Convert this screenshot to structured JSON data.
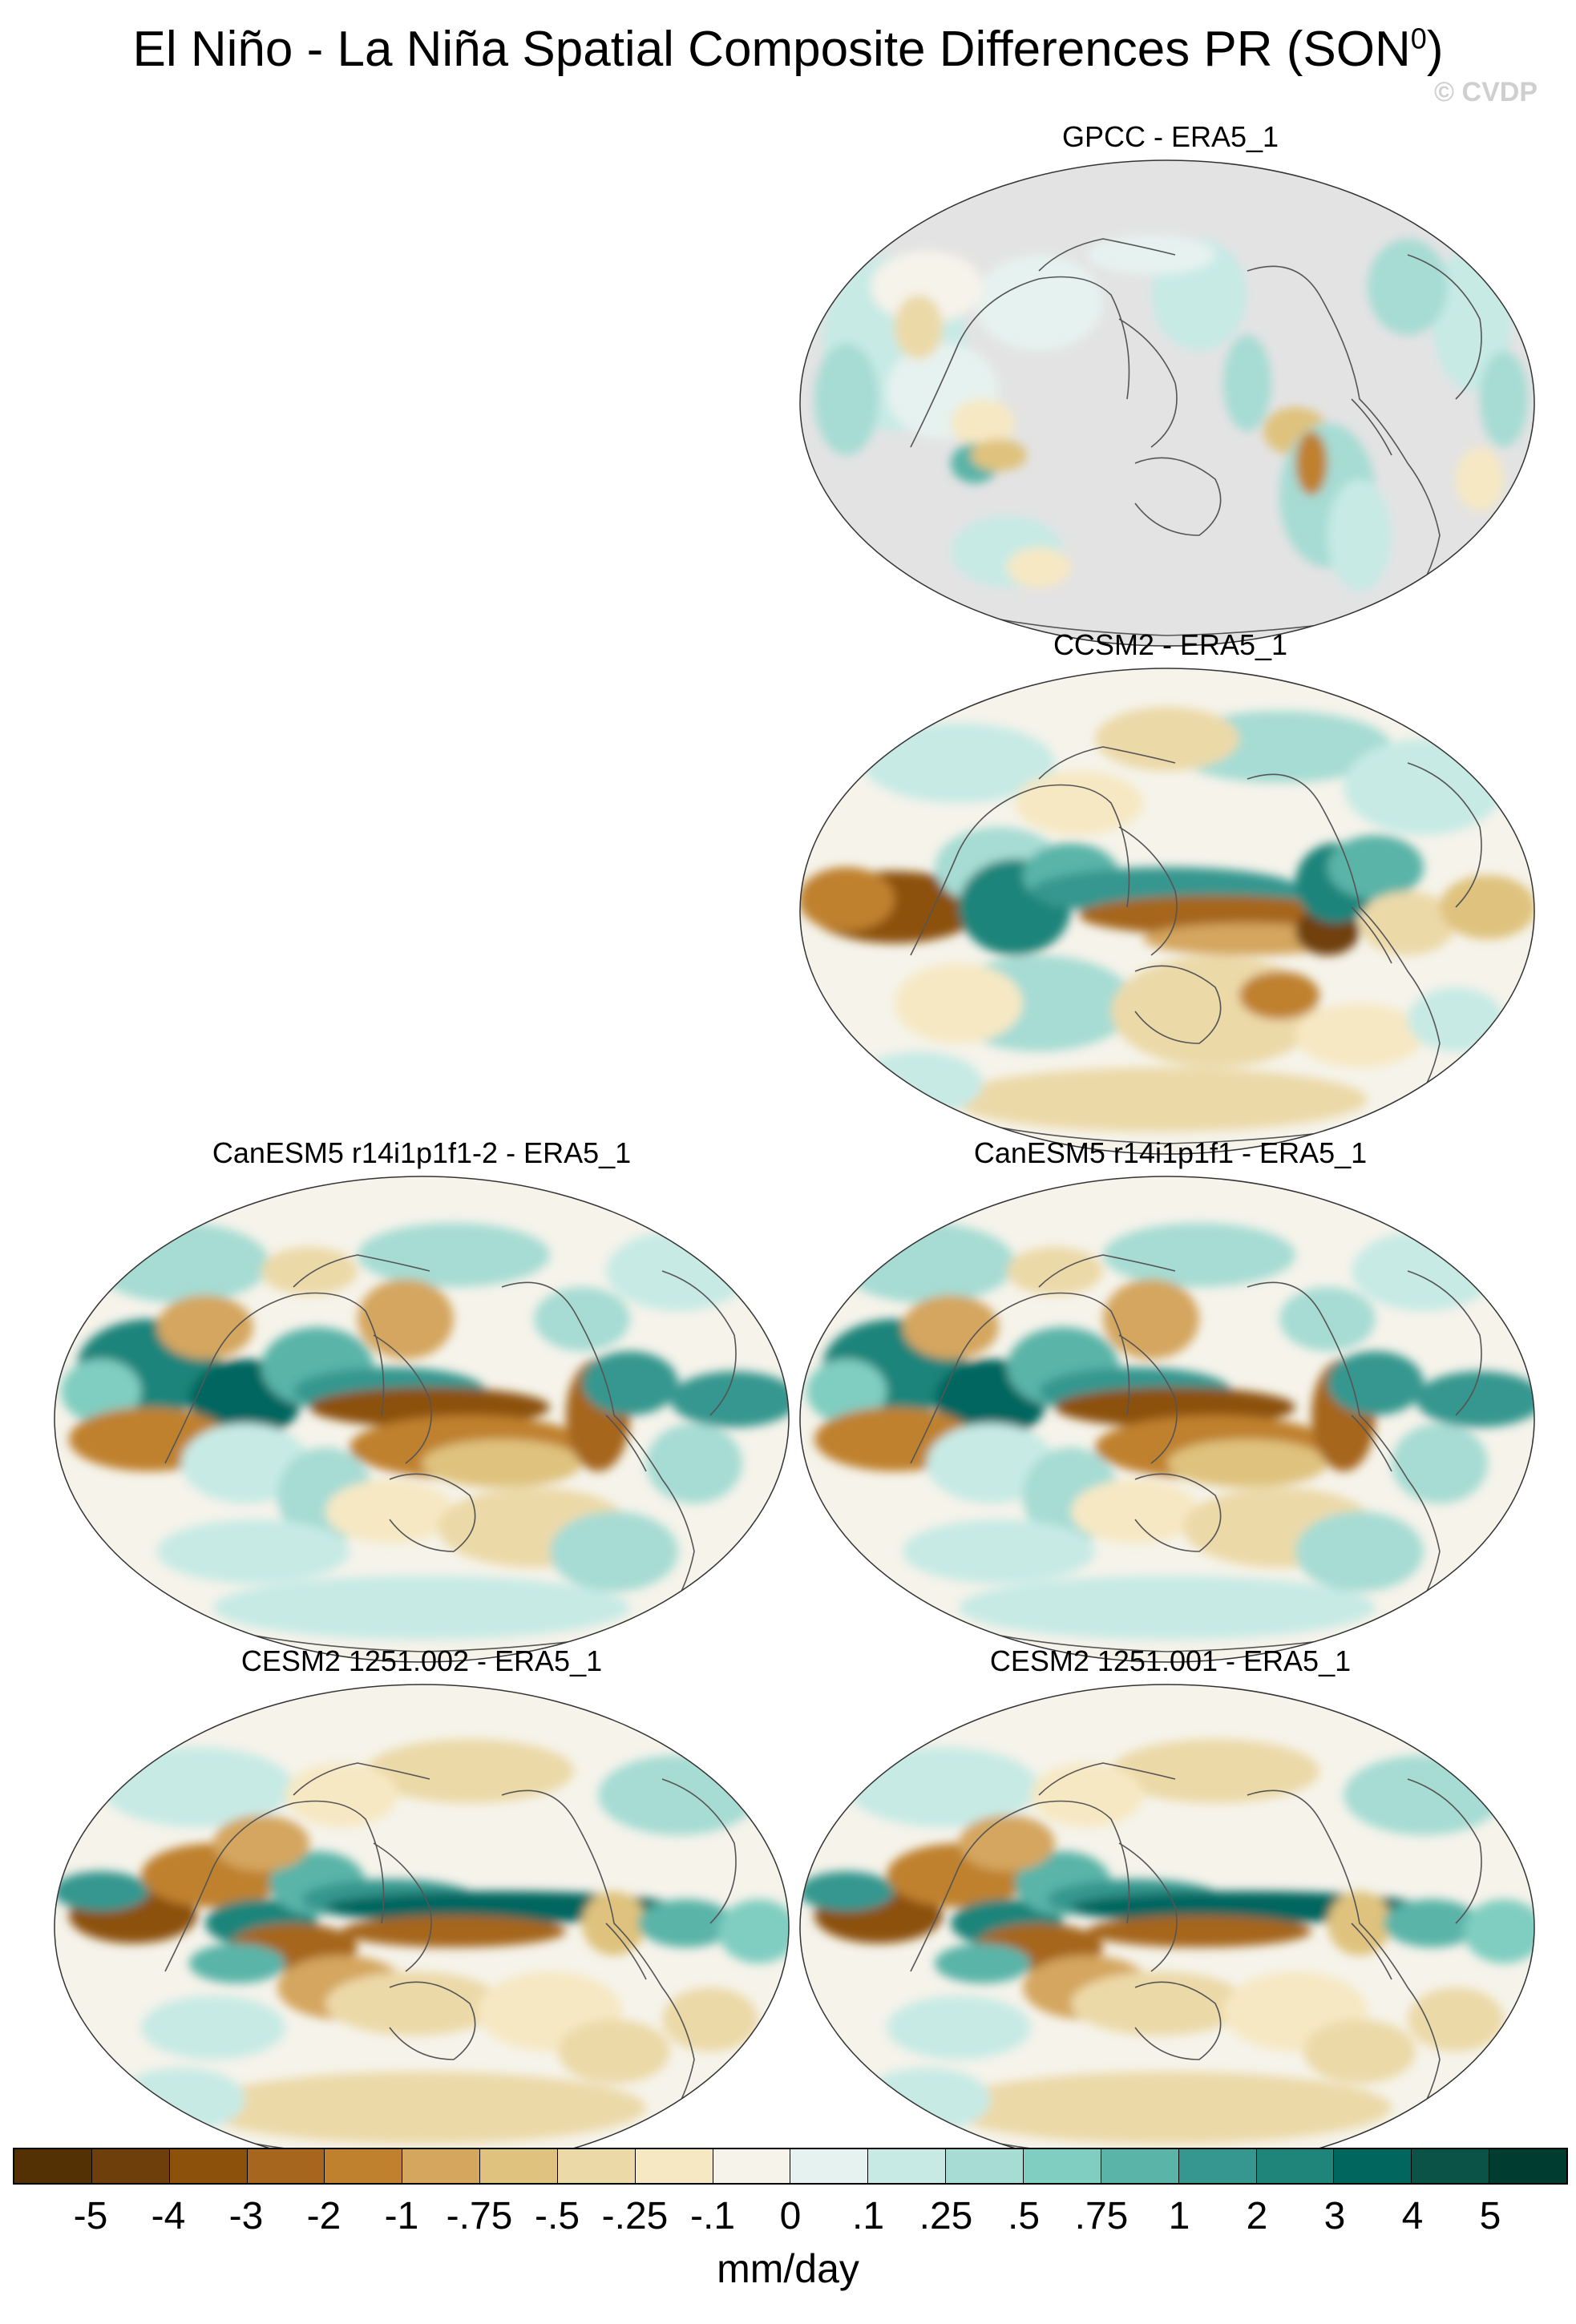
{
  "title": {
    "main": "El Niño - La Niña Spatial Composite Differences PR (SON",
    "sup": "0",
    "close": ")"
  },
  "watermark": "© CVDP",
  "panels": [
    {
      "id": "gpcc",
      "label": "GPCC - ERA5_1",
      "kind": "land"
    },
    {
      "id": "ccsm2",
      "label": "CCSM2 - ERA5_1",
      "kind": "ccsm"
    },
    {
      "id": "canesm5-r14-2",
      "label": "CanESM5 r14i1p1f1-2 - ERA5_1",
      "kind": "canesm"
    },
    {
      "id": "canesm5-r14",
      "label": "CanESM5 r14i1p1f1 - ERA5_1",
      "kind": "canesm"
    },
    {
      "id": "cesm2-002",
      "label": "CESM2 1251.002 - ERA5_1",
      "kind": "cesm"
    },
    {
      "id": "cesm2-001",
      "label": "CESM2 1251.001 - ERA5_1",
      "kind": "cesm"
    }
  ],
  "colorbar": {
    "units": "mm/day",
    "ticks": [
      "-5",
      "-4",
      "-3",
      "-2",
      "-1",
      "-.75",
      "-.5",
      "-.25",
      "-.1",
      "0",
      ".1",
      ".25",
      ".5",
      ".75",
      "1",
      "2",
      "3",
      "4",
      "5"
    ],
    "colors": [
      "#543005",
      "#6f3f0b",
      "#8c510a",
      "#a6661d",
      "#bf812d",
      "#d4a65e",
      "#dfc27d",
      "#ecd9a8",
      "#f6e8c3",
      "#f5f3ea",
      "#e6f2ef",
      "#c7eae5",
      "#a6dcd4",
      "#80cdc1",
      "#5ab4a8",
      "#35978f",
      "#1f847a",
      "#01665e",
      "#0b5346",
      "#003c30"
    ]
  }
}
